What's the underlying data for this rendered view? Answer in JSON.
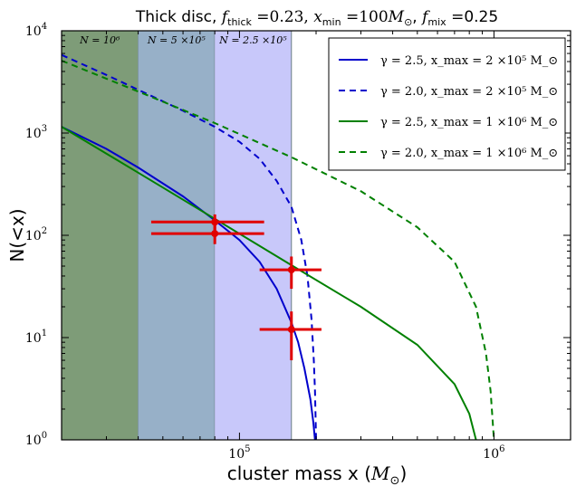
{
  "chart_data": {
    "type": "line",
    "title": "Thick disc, f_thick = 0.23, x_min = 100 M_⊙, f_mix = 0.25",
    "xlabel": "cluster mass x (M_⊙)",
    "ylabel": "N(<x)",
    "x_scale": "log",
    "y_scale": "log",
    "xlim": [
      20000,
      2000000
    ],
    "ylim": [
      1,
      10000
    ],
    "x_ticks": [
      {
        "value": 100000,
        "base": "10",
        "exp": "5"
      },
      {
        "value": 1000000,
        "base": "10",
        "exp": "6"
      }
    ],
    "y_ticks": [
      {
        "value": 1,
        "base": "10",
        "exp": "0"
      },
      {
        "value": 10,
        "base": "10",
        "exp": "1"
      },
      {
        "value": 100,
        "base": "10",
        "exp": "2"
      },
      {
        "value": 1000,
        "base": "10",
        "exp": "3"
      },
      {
        "value": 10000,
        "base": "10",
        "exp": "4"
      }
    ],
    "grid": false,
    "legend_position": "top-right",
    "shaded_regions": [
      {
        "label": "N = 10⁶",
        "x0": 20000,
        "x1": 40000,
        "color": "#7e9c78"
      },
      {
        "label": "N = 5 ×10⁵",
        "x0": 40000,
        "x1": 80000,
        "color": "#97b0c8"
      },
      {
        "label": "N = 2.5 ×10⁵",
        "x0": 80000,
        "x1": 160000,
        "color": "#c8c8fa"
      }
    ],
    "series": [
      {
        "name": "γ = 2.5, x_max = 2 ×10⁵ M_⊙",
        "color": "#0000cc",
        "style": "solid",
        "points": [
          [
            20000,
            1150
          ],
          [
            30000,
            700
          ],
          [
            40000,
            460
          ],
          [
            60000,
            240
          ],
          [
            80000,
            140
          ],
          [
            100000,
            90
          ],
          [
            120000,
            55
          ],
          [
            140000,
            30
          ],
          [
            160000,
            14
          ],
          [
            170000,
            9
          ],
          [
            180000,
            5
          ],
          [
            190000,
            2.5
          ],
          [
            195000,
            1.5
          ],
          [
            198000,
            1
          ]
        ]
      },
      {
        "name": "γ = 2.0, x_max = 2 ×10⁵ M_⊙",
        "color": "#0000cc",
        "style": "dashed",
        "points": [
          [
            20000,
            5800
          ],
          [
            30000,
            3700
          ],
          [
            40000,
            2650
          ],
          [
            60000,
            1650
          ],
          [
            80000,
            1150
          ],
          [
            100000,
            820
          ],
          [
            120000,
            560
          ],
          [
            140000,
            340
          ],
          [
            160000,
            190
          ],
          [
            175000,
            90
          ],
          [
            185000,
            40
          ],
          [
            192000,
            15
          ],
          [
            196000,
            6
          ],
          [
            198000,
            3
          ],
          [
            200000,
            1
          ]
        ]
      },
      {
        "name": "γ = 2.5, x_max = 1 ×10⁶ M_⊙",
        "color": "#008000",
        "style": "solid",
        "points": [
          [
            20000,
            1150
          ],
          [
            40000,
            410
          ],
          [
            80000,
            145
          ],
          [
            160000,
            51
          ],
          [
            300000,
            20
          ],
          [
            500000,
            8.5
          ],
          [
            700000,
            3.5
          ],
          [
            800000,
            1.8
          ],
          [
            850000,
            1
          ]
        ]
      },
      {
        "name": "γ = 2.0, x_max = 1 ×10⁶ M_⊙",
        "color": "#008000",
        "style": "dashed",
        "points": [
          [
            20000,
            5100
          ],
          [
            40000,
            2550
          ],
          [
            80000,
            1250
          ],
          [
            160000,
            580
          ],
          [
            300000,
            270
          ],
          [
            500000,
            120
          ],
          [
            700000,
            55
          ],
          [
            850000,
            20
          ],
          [
            930000,
            7
          ],
          [
            970000,
            3
          ],
          [
            1000000,
            1
          ]
        ]
      }
    ],
    "data_points": [
      {
        "x": 80000,
        "y": 135,
        "xerr": [
          35000,
          45000
        ],
        "yerr": [
          25,
          25
        ]
      },
      {
        "x": 80000,
        "y": 104,
        "xerr": [
          35000,
          45000
        ],
        "yerr": [
          22,
          22
        ]
      },
      {
        "x": 160000,
        "y": 46,
        "xerr": [
          40000,
          50000
        ],
        "yerr": [
          16,
          16
        ]
      },
      {
        "x": 160000,
        "y": 12,
        "xerr": [
          40000,
          50000
        ],
        "yerr": [
          6,
          6
        ]
      }
    ],
    "data_point_color": "#e00000"
  }
}
